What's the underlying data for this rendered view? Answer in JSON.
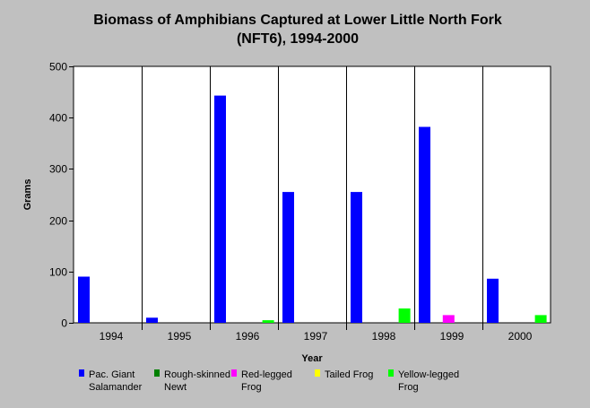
{
  "chart_data": {
    "type": "bar",
    "title_line1": "Biomass of Amphibians Captured at Lower Little North Fork",
    "title_line2": "(NFT6), 1994-2000",
    "xlabel": "Year",
    "ylabel": "Grams",
    "ylim": [
      0,
      500
    ],
    "yticks": [
      "0",
      "100",
      "200",
      "300",
      "400",
      "500"
    ],
    "categories": [
      "1994",
      "1995",
      "1996",
      "1997",
      "1998",
      "1999",
      "2000"
    ],
    "grid": "vertical category dividers",
    "legend_position": "bottom",
    "series": [
      {
        "name": "Pac. Giant Salamander",
        "legend_lines": [
          "Pac. Giant",
          "Salamander"
        ],
        "color": "#0000ff",
        "values": [
          90,
          10,
          443,
          255,
          255,
          382,
          86
        ]
      },
      {
        "name": "Rough-skinned Newt",
        "legend_lines": [
          "Rough-skinned",
          "Newt"
        ],
        "color": "#008000",
        "values": [
          0,
          0,
          0,
          0,
          0,
          0,
          0
        ]
      },
      {
        "name": "Red-legged Frog",
        "legend_lines": [
          "Red-legged",
          "Frog"
        ],
        "color": "#ff00ff",
        "values": [
          0,
          0,
          0,
          0,
          0,
          15,
          0
        ]
      },
      {
        "name": "Tailed Frog",
        "legend_lines": [
          "Tailed Frog"
        ],
        "color": "#ffff00",
        "values": [
          0,
          0,
          0,
          0,
          0,
          0,
          0
        ]
      },
      {
        "name": "Yellow-legged Frog",
        "legend_lines": [
          "Yellow-legged",
          "Frog"
        ],
        "color": "#00ff00",
        "values": [
          0,
          0,
          5,
          0,
          28,
          0,
          15
        ]
      }
    ]
  }
}
